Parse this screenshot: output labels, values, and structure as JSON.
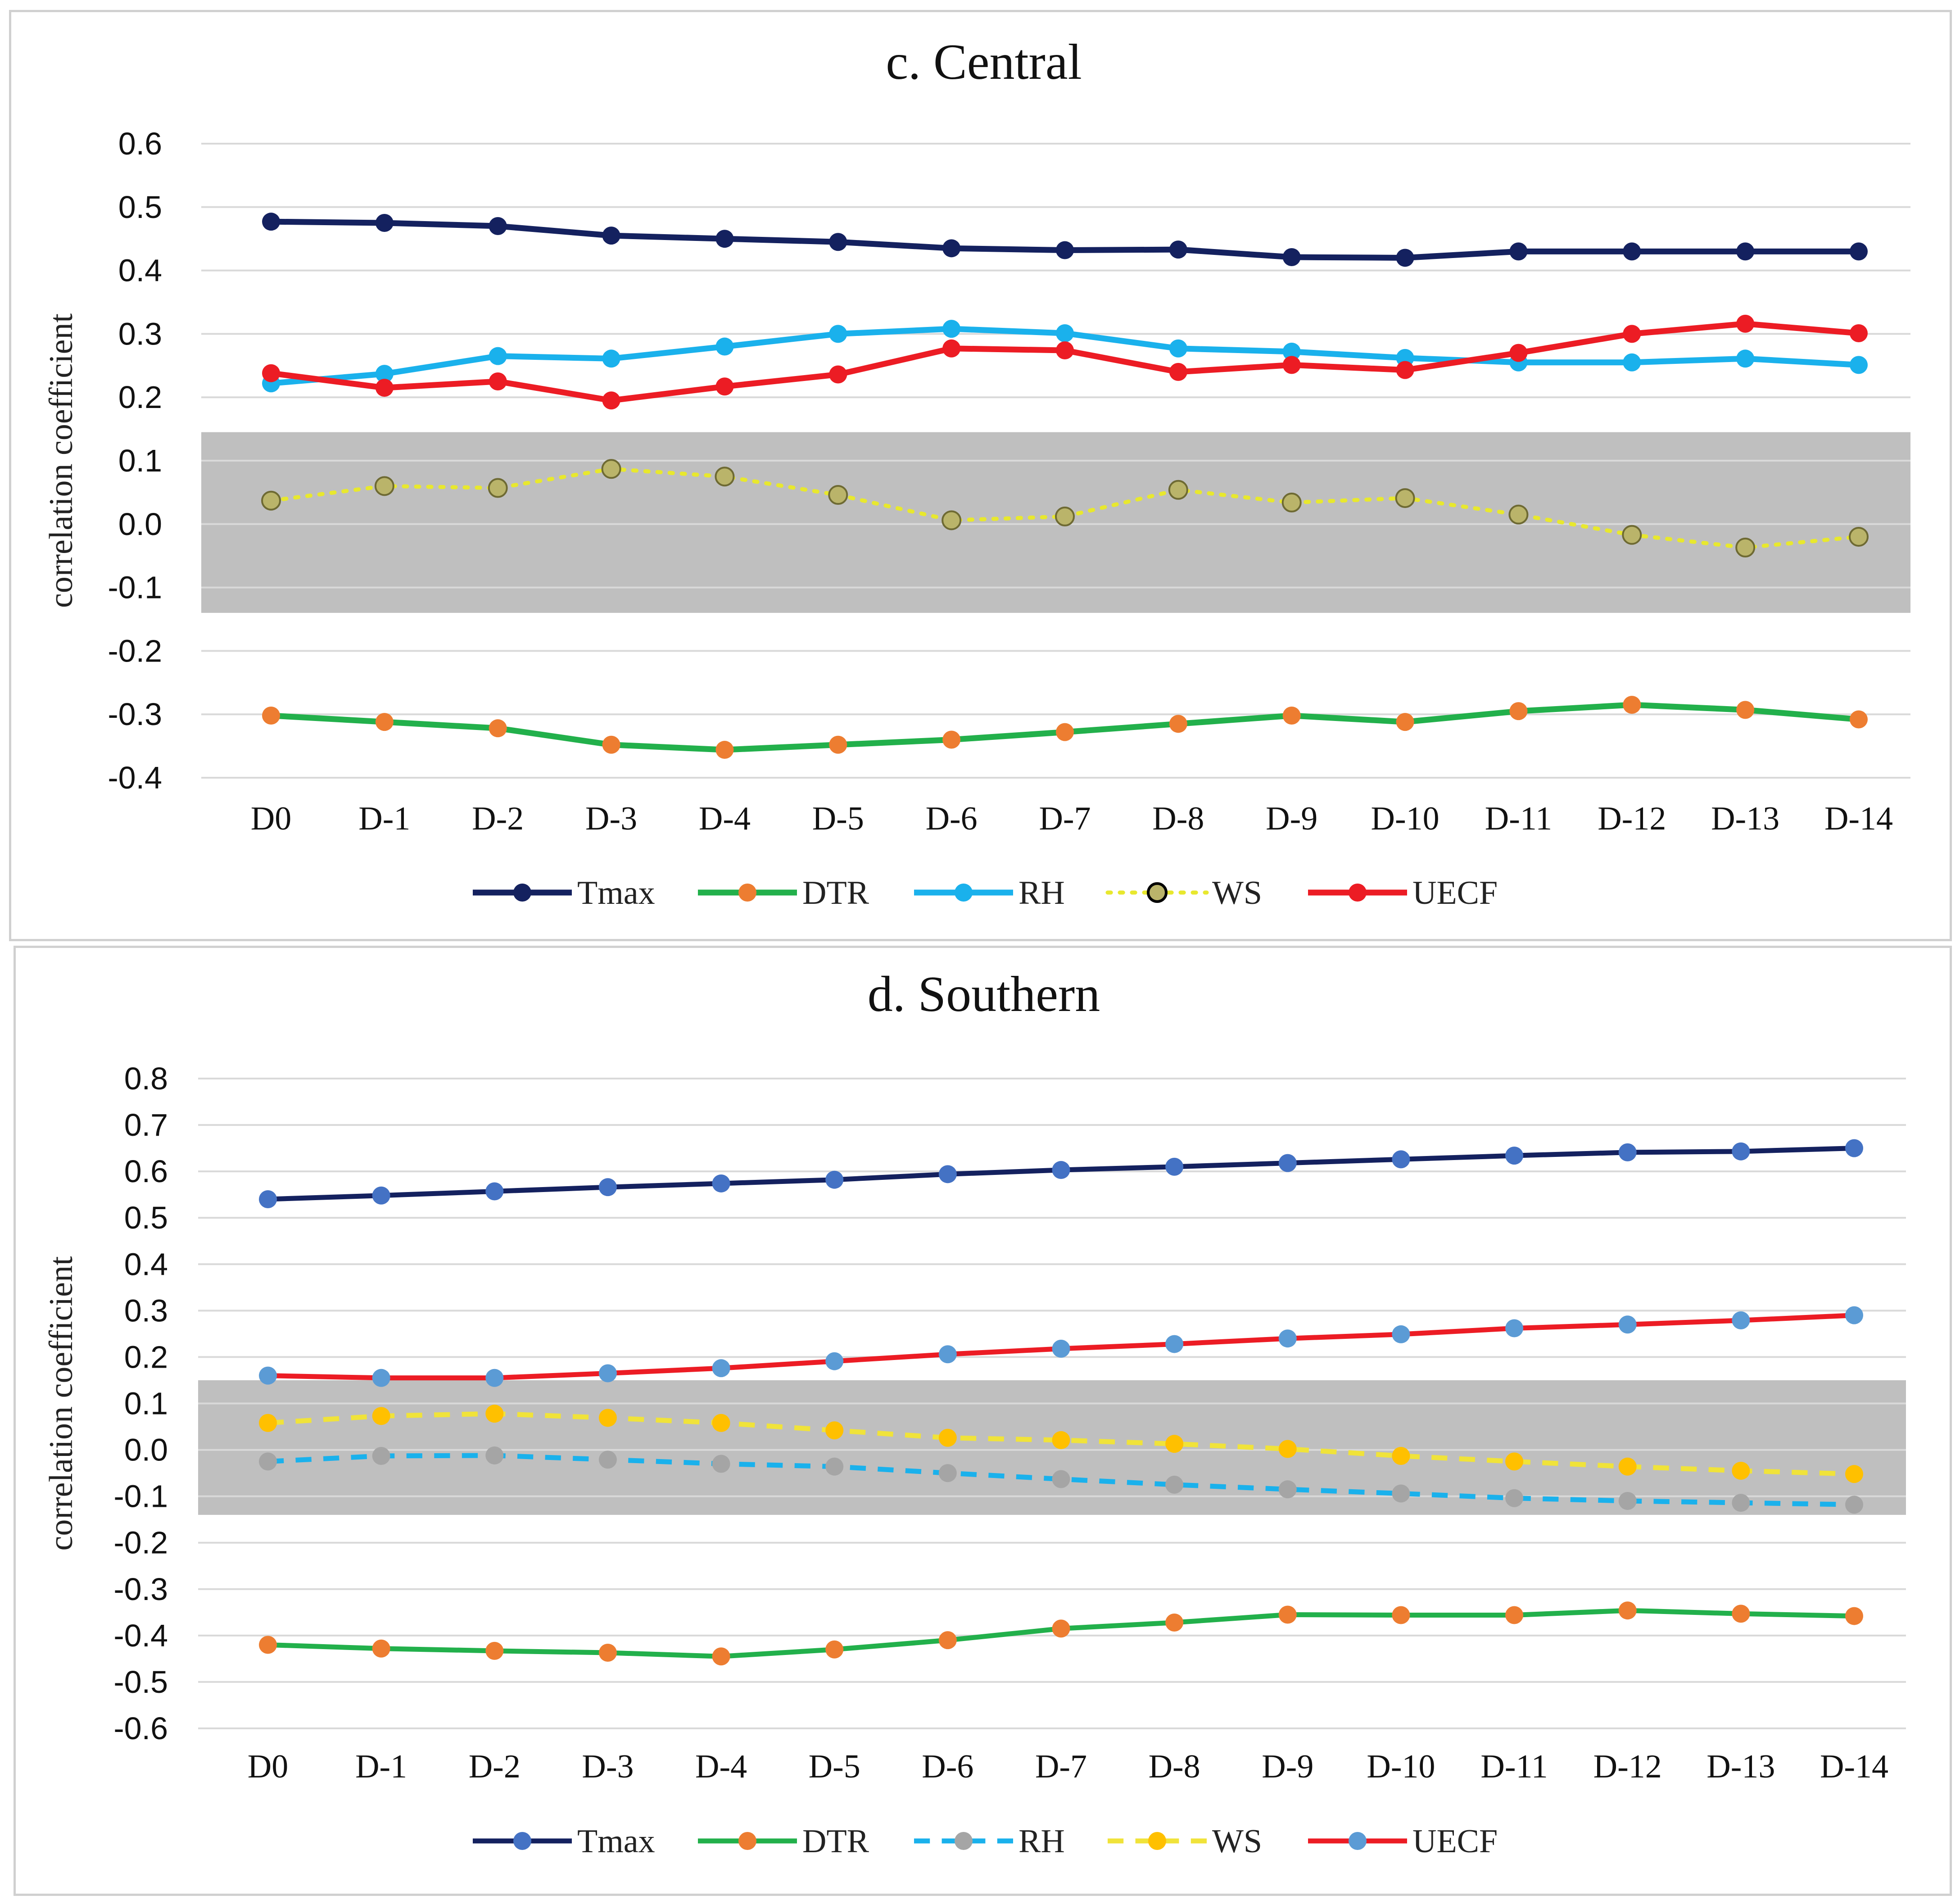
{
  "chart_data": [
    {
      "type": "line",
      "title": "c. Central",
      "xlabel": "",
      "ylabel": "correlation coefficient",
      "ylim": [
        -0.4,
        0.6
      ],
      "yticks": [
        "0.6",
        "0.5",
        "0.4",
        "0.3",
        "0.2",
        "0.1",
        "0.0",
        "-0.1",
        "-0.2",
        "-0.3",
        "-0.4"
      ],
      "shaded_band": [
        -0.14,
        0.145
      ],
      "categories": [
        "D0",
        "D-1",
        "D-2",
        "D-3",
        "D-4",
        "D-5",
        "D-6",
        "D-7",
        "D-8",
        "D-9",
        "D-10",
        "D-11",
        "D-12",
        "D-13",
        "D-14"
      ],
      "series": [
        {
          "name": "Tmax",
          "line_color": "#14215f",
          "marker_color": "#14215f",
          "dash": "solid",
          "values": [
            0.477,
            0.475,
            0.47,
            0.455,
            0.45,
            0.445,
            0.435,
            0.432,
            0.433,
            0.421,
            0.42,
            0.43,
            0.43,
            0.43,
            0.43
          ]
        },
        {
          "name": "DTR",
          "line_color": "#22b04b",
          "marker_color": "#ed7d31",
          "dash": "solid",
          "values": [
            -0.302,
            -0.312,
            -0.322,
            -0.348,
            -0.356,
            -0.348,
            -0.34,
            -0.328,
            -0.315,
            -0.302,
            -0.312,
            -0.295,
            -0.285,
            -0.293,
            -0.308
          ]
        },
        {
          "name": "RH",
          "line_color": "#1ab1ec",
          "marker_color": "#1ab1ec",
          "dash": "solid",
          "values": [
            0.222,
            0.237,
            0.265,
            0.261,
            0.28,
            0.3,
            0.308,
            0.301,
            0.277,
            0.272,
            0.262,
            0.255,
            0.255,
            0.261,
            0.251
          ]
        },
        {
          "name": "WS",
          "line_color": "#e8e82e",
          "marker_color": "#bab46a",
          "marker_stroke": "#6e6a33",
          "dash": "dotted",
          "values": [
            0.037,
            0.06,
            0.057,
            0.087,
            0.075,
            0.046,
            0.006,
            0.012,
            0.054,
            0.034,
            0.041,
            0.015,
            -0.017,
            -0.037,
            -0.02
          ]
        },
        {
          "name": "UECF",
          "line_color": "#ec1c24",
          "marker_color": "#ec1c24",
          "dash": "solid",
          "values": [
            0.238,
            0.215,
            0.225,
            0.195,
            0.217,
            0.236,
            0.277,
            0.274,
            0.24,
            0.251,
            0.243,
            0.27,
            0.3,
            0.316,
            0.301
          ]
        }
      ]
    },
    {
      "type": "line",
      "title": "d. Southern",
      "xlabel": "",
      "ylabel": "correlation coefficient",
      "ylim": [
        -0.6,
        0.8
      ],
      "yticks": [
        "0.8",
        "0.7",
        "0.6",
        "0.5",
        "0.4",
        "0.3",
        "0.2",
        "0.1",
        "0.0",
        "-0.1",
        "-0.2",
        "-0.3",
        "-0.4",
        "-0.5",
        "-0.6"
      ],
      "shaded_band": [
        -0.14,
        0.15
      ],
      "categories": [
        "D0",
        "D-1",
        "D-2",
        "D-3",
        "D-4",
        "D-5",
        "D-6",
        "D-7",
        "D-8",
        "D-9",
        "D-10",
        "D-11",
        "D-12",
        "D-13",
        "D-14"
      ],
      "series": [
        {
          "name": "Tmax",
          "line_color": "#14215f",
          "marker_color": "#4472c4",
          "dash": "solid",
          "values": [
            0.54,
            0.548,
            0.557,
            0.566,
            0.574,
            0.582,
            0.594,
            0.603,
            0.61,
            0.618,
            0.626,
            0.634,
            0.641,
            0.643,
            0.65
          ]
        },
        {
          "name": "DTR",
          "line_color": "#22b04b",
          "marker_color": "#ed7d31",
          "dash": "solid",
          "values": [
            -0.42,
            -0.428,
            -0.433,
            -0.437,
            -0.445,
            -0.43,
            -0.41,
            -0.385,
            -0.372,
            -0.355,
            -0.356,
            -0.356,
            -0.346,
            -0.353,
            -0.358
          ]
        },
        {
          "name": "RH",
          "line_color": "#1ab1ec",
          "marker_color": "#a5a5a5",
          "dash": "dashed",
          "values": [
            -0.025,
            -0.013,
            -0.012,
            -0.021,
            -0.03,
            -0.036,
            -0.05,
            -0.063,
            -0.075,
            -0.085,
            -0.094,
            -0.104,
            -0.11,
            -0.114,
            -0.118
          ]
        },
        {
          "name": "WS",
          "line_color": "#f0e33a",
          "marker_color": "#ffc000",
          "dash": "dashed",
          "values": [
            0.058,
            0.073,
            0.078,
            0.069,
            0.058,
            0.042,
            0.026,
            0.021,
            0.013,
            0.002,
            -0.013,
            -0.025,
            -0.036,
            -0.045,
            -0.052
          ]
        },
        {
          "name": "UECF",
          "line_color": "#ec1c24",
          "marker_color": "#5b9bd5",
          "dash": "solid",
          "values": [
            0.16,
            0.155,
            0.155,
            0.165,
            0.176,
            0.191,
            0.206,
            0.218,
            0.228,
            0.24,
            0.249,
            0.262,
            0.27,
            0.279,
            0.29
          ]
        }
      ]
    }
  ]
}
